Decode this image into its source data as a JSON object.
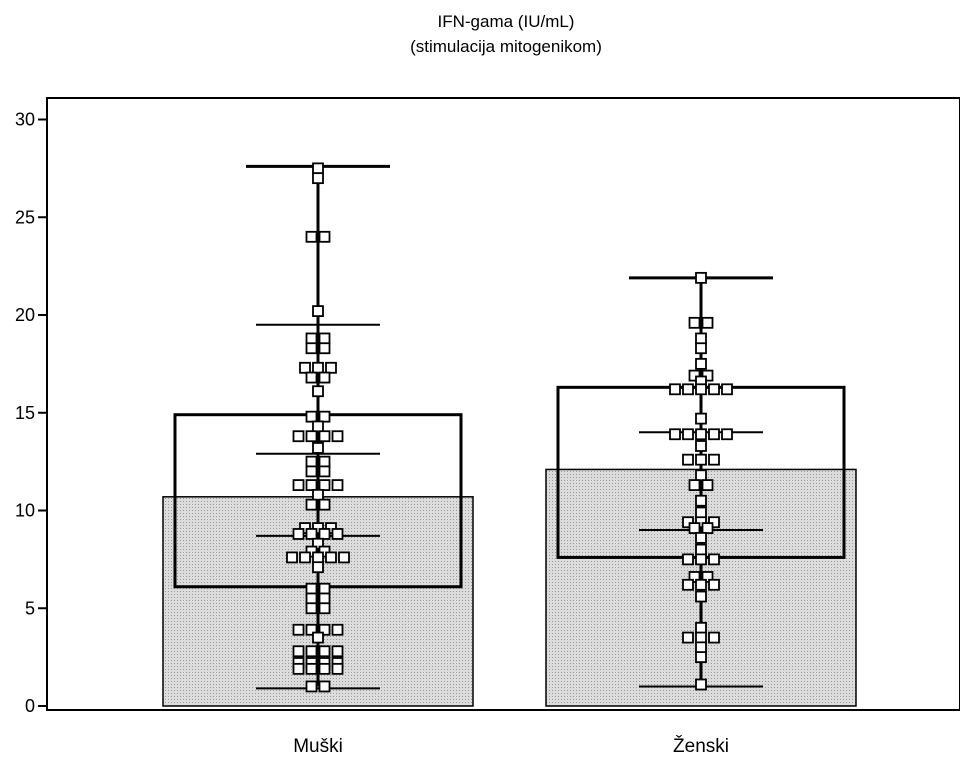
{
  "chart_data": {
    "type": "bar",
    "title": "IFN-gama (IU/mL)",
    "subtitle": "(stimulacija mitogenikom)",
    "categories": [
      "Muški",
      "Ženski"
    ],
    "ylim": [
      0,
      30
    ],
    "yticks": [
      0,
      5,
      10,
      15,
      20,
      25,
      30
    ],
    "grid": false,
    "colors": {
      "bar_fill": "#dcdcdc",
      "stroke": "#000000",
      "marker_fill": "#ffffff"
    },
    "groups": [
      {
        "category": "Muški",
        "mean": 10.7,
        "whisker_min": 1.0,
        "whisker_max": 27.6,
        "box_low": 6.1,
        "box_high": 14.9,
        "sd_low": 0.9,
        "sd_high": 19.5,
        "sem_low": 8.7,
        "sem_high": 12.9,
        "points": [
          {
            "y": 27.5,
            "n": 1
          },
          {
            "y": 27.0,
            "n": 1
          },
          {
            "y": 24.0,
            "n": 2
          },
          {
            "y": 20.2,
            "n": 1
          },
          {
            "y": 18.8,
            "n": 2
          },
          {
            "y": 18.3,
            "n": 2
          },
          {
            "y": 17.3,
            "n": 3
          },
          {
            "y": 16.8,
            "n": 2
          },
          {
            "y": 16.1,
            "n": 1
          },
          {
            "y": 14.8,
            "n": 2
          },
          {
            "y": 14.3,
            "n": 1
          },
          {
            "y": 13.8,
            "n": 4
          },
          {
            "y": 13.2,
            "n": 1
          },
          {
            "y": 12.5,
            "n": 2
          },
          {
            "y": 12.0,
            "n": 2
          },
          {
            "y": 11.3,
            "n": 4
          },
          {
            "y": 10.8,
            "n": 1
          },
          {
            "y": 10.3,
            "n": 2
          },
          {
            "y": 9.1,
            "n": 3
          },
          {
            "y": 8.8,
            "n": 4
          },
          {
            "y": 8.3,
            "n": 1
          },
          {
            "y": 7.9,
            "n": 2
          },
          {
            "y": 7.6,
            "n": 5
          },
          {
            "y": 7.1,
            "n": 1
          },
          {
            "y": 6.0,
            "n": 2
          },
          {
            "y": 5.5,
            "n": 2
          },
          {
            "y": 5.0,
            "n": 2
          },
          {
            "y": 3.9,
            "n": 4
          },
          {
            "y": 3.5,
            "n": 1
          },
          {
            "y": 2.8,
            "n": 4
          },
          {
            "y": 2.2,
            "n": 4
          },
          {
            "y": 1.9,
            "n": 4
          },
          {
            "y": 1.0,
            "n": 2
          }
        ]
      },
      {
        "category": "Ženski",
        "mean": 12.1,
        "whisker_min": 1.1,
        "whisker_max": 21.9,
        "box_low": 7.6,
        "box_high": 16.3,
        "sd_low": 1.0,
        "sd_high": 14.0,
        "sem_low": 9.0,
        "sem_high": 9.0,
        "points": [
          {
            "y": 21.9,
            "n": 1
          },
          {
            "y": 19.6,
            "n": 2
          },
          {
            "y": 18.8,
            "n": 1
          },
          {
            "y": 18.3,
            "n": 1
          },
          {
            "y": 17.5,
            "n": 1
          },
          {
            "y": 16.9,
            "n": 2
          },
          {
            "y": 16.6,
            "n": 1
          },
          {
            "y": 16.2,
            "n": 5
          },
          {
            "y": 14.7,
            "n": 1
          },
          {
            "y": 13.9,
            "n": 5
          },
          {
            "y": 13.3,
            "n": 1
          },
          {
            "y": 12.6,
            "n": 3
          },
          {
            "y": 11.8,
            "n": 1
          },
          {
            "y": 11.3,
            "n": 2
          },
          {
            "y": 10.5,
            "n": 1
          },
          {
            "y": 9.9,
            "n": 1
          },
          {
            "y": 9.4,
            "n": 3
          },
          {
            "y": 9.1,
            "n": 2
          },
          {
            "y": 8.6,
            "n": 1
          },
          {
            "y": 8.0,
            "n": 1
          },
          {
            "y": 7.5,
            "n": 3
          },
          {
            "y": 6.6,
            "n": 2
          },
          {
            "y": 6.2,
            "n": 3
          },
          {
            "y": 5.6,
            "n": 1
          },
          {
            "y": 4.0,
            "n": 1
          },
          {
            "y": 3.5,
            "n": 3
          },
          {
            "y": 3.0,
            "n": 1
          },
          {
            "y": 2.5,
            "n": 1
          },
          {
            "y": 1.1,
            "n": 1
          }
        ]
      }
    ]
  }
}
